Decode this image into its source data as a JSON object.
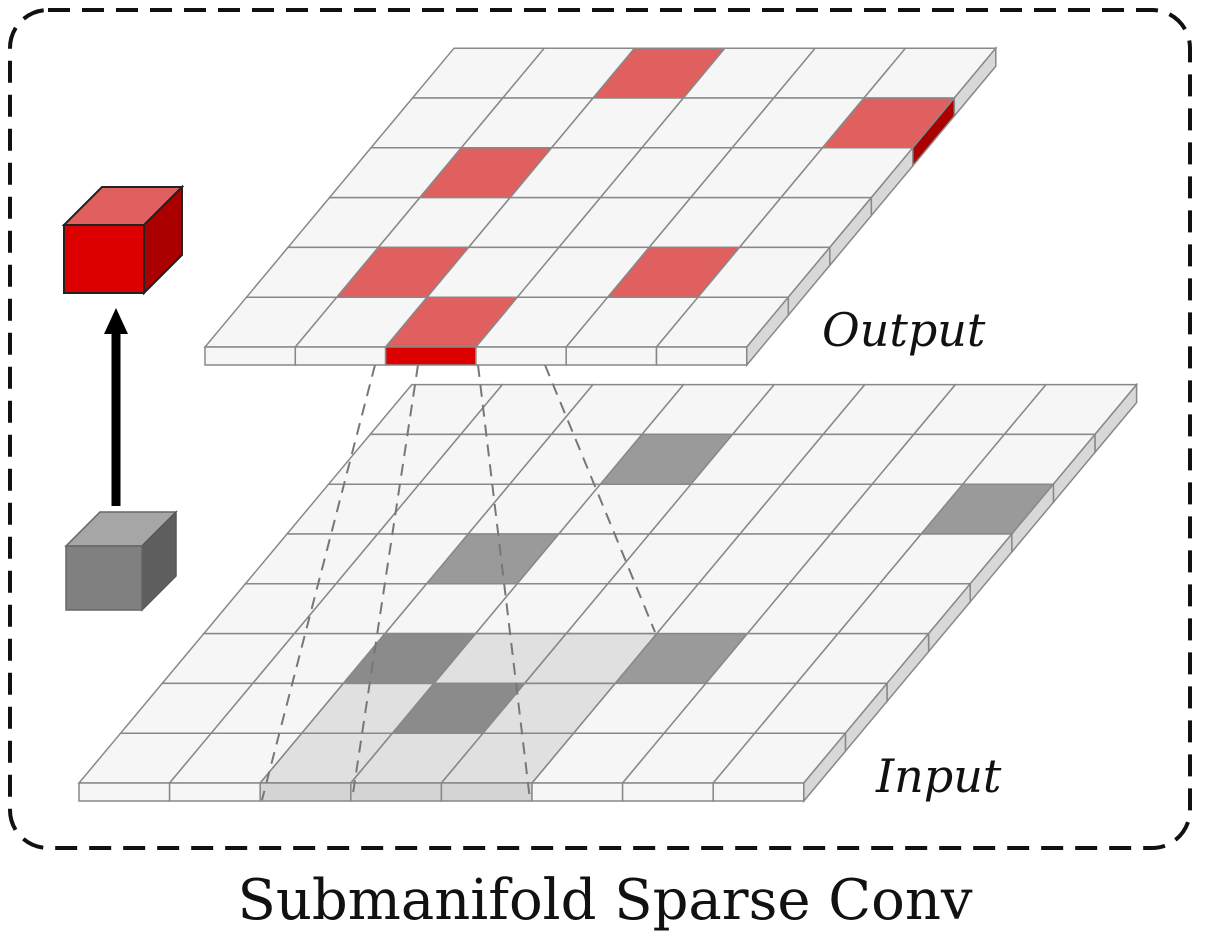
{
  "labels": {
    "output": "Output",
    "input": "Input",
    "caption": "Submanifold Sparse Conv"
  },
  "output_grid": {
    "rows": 6,
    "cols": 6,
    "active_cells": [
      [
        0,
        2
      ],
      [
        1,
        5
      ],
      [
        2,
        1
      ],
      [
        4,
        1
      ],
      [
        4,
        4
      ],
      [
        5,
        2
      ]
    ]
  },
  "input_grid": {
    "rows": 8,
    "cols": 8,
    "active_cells": [
      [
        1,
        3
      ],
      [
        2,
        7
      ],
      [
        3,
        2
      ],
      [
        5,
        2
      ],
      [
        5,
        5
      ],
      [
        6,
        3
      ]
    ],
    "kernel_window": {
      "row_start": 5,
      "col_start": 2,
      "size": 3
    }
  },
  "colors": {
    "cell_fill": "#f6f6f6",
    "grid_line": "#888888",
    "active_output": "#e06060",
    "active_output_edge": "#dd0000",
    "active_input": "#9a9a9a",
    "kernel_fill": "#d4d4d4",
    "side_face": "#d8d8d8",
    "cube_red_front": "#dd0000",
    "cube_red_top": "#e06060",
    "cube_red_side": "#aa0000",
    "cube_gray_front": "#808080",
    "cube_gray_top": "#a6a6a6",
    "cube_gray_side": "#5e5e5e"
  }
}
